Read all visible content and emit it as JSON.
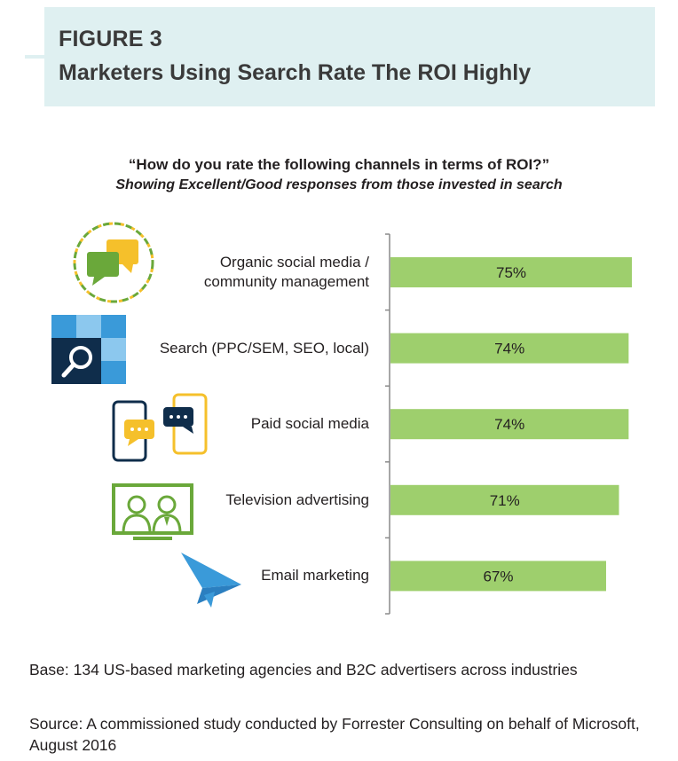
{
  "header": {
    "figure_label": "FIGURE 3",
    "title": "Marketers Using Search Rate The ROI Highly"
  },
  "chart_data": {
    "type": "bar",
    "orientation": "horizontal",
    "title": "“How do you rate the following channels in terms of ROI?”",
    "subtitle": "Showing Excellent/Good responses from those invested in search",
    "categories": [
      "Organic social media / community management",
      "Search (PPC/SEM, SEO, local)",
      "Paid social media",
      "Television advertising",
      "Email marketing"
    ],
    "category_lines": [
      [
        "Organic social media /",
        "community management"
      ],
      [
        "Search (PPC/SEM, SEO, local)"
      ],
      [
        "Paid social media"
      ],
      [
        "Television advertising"
      ],
      [
        "Email marketing"
      ]
    ],
    "values": [
      75,
      74,
      74,
      71,
      67
    ],
    "data_labels": [
      "75%",
      "74%",
      "74%",
      "71%",
      "67%"
    ],
    "unit": "%",
    "xlim": [
      0,
      75
    ],
    "grid": false,
    "bar_color": "#9ecf6d"
  },
  "icons": [
    "speech-bubbles-icon",
    "search-magnifier-icon",
    "mobile-chat-icon",
    "television-people-icon",
    "paper-plane-icon"
  ],
  "colors": {
    "header_bg": "#dff0f1",
    "bar": "#9ecf6d",
    "icon_green": "#6aa83a",
    "icon_yellow": "#f5c02b",
    "icon_navy": "#0f2d4b",
    "icon_blue": "#3a9ad9"
  },
  "footer": {
    "base": "Base: 134 US-based marketing agencies and B2C advertisers across industries",
    "source": "Source: A commissioned study conducted by Forrester Consulting on behalf of Microsoft, August 2016"
  }
}
